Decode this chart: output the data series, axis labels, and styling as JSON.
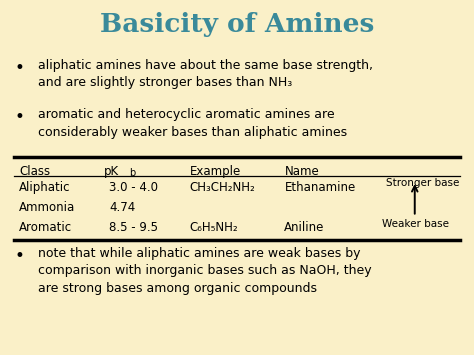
{
  "bg_color": "#FAF0C8",
  "title": "Basicity of Amines",
  "title_color": "#3A8A9A",
  "title_fontsize": 19,
  "bullet_color": "#000000",
  "bullet_fontsize": 9.0,
  "bullets": [
    "aliphatic amines have about the same base strength,\nand are slightly stronger bases than NH₃",
    "aromatic and heterocyclic aromatic amines are\nconsiderably weaker bases than aliphatic amines"
  ],
  "bullet3": "note that while aliphatic amines are weak bases by\ncomparison with inorganic bases such as NaOH, they\nare strong bases among organic compounds",
  "stronger_label": "Stronger base",
  "weaker_label": "Weaker base",
  "line_color": "#000000",
  "table_fontsize": 8.5,
  "table_rows": [
    [
      "Aliphatic",
      "3.0 - 4.0",
      "CH₃CH₂NH₂",
      "Ethanamine"
    ],
    [
      "Ammonia",
      "4.74",
      "",
      ""
    ],
    [
      "Aromatic",
      "8.5 - 9.5",
      "C₆H₅NH₂",
      "Aniline"
    ]
  ]
}
